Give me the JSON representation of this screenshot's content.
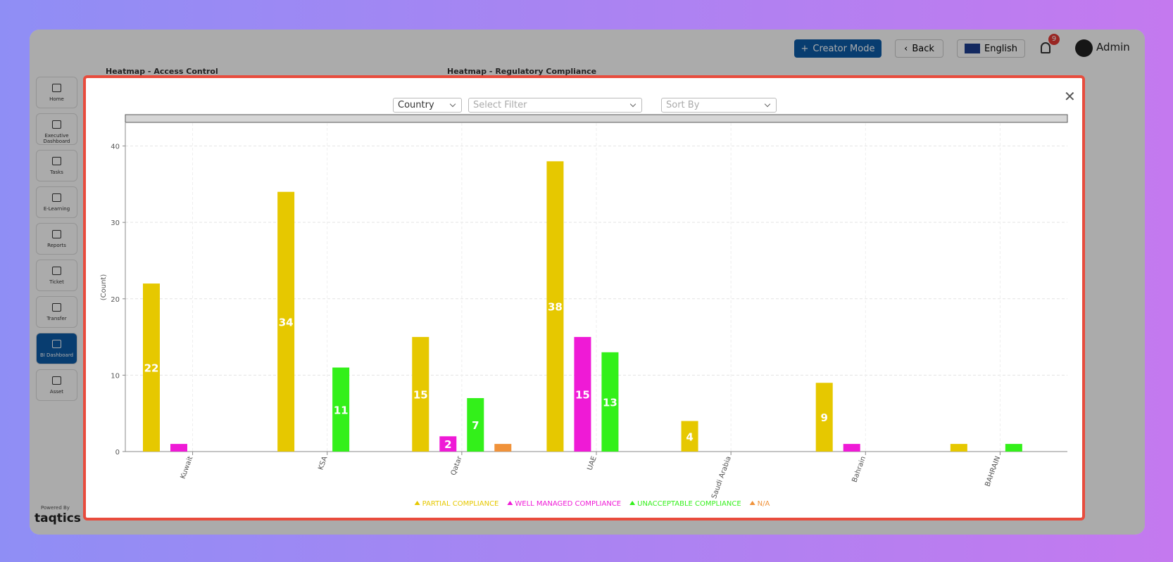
{
  "header": {
    "creator_mode": "Creator Mode",
    "back": "Back",
    "language": "English",
    "notifications": "9",
    "user": "Admin"
  },
  "sidebar": {
    "items": [
      "Home",
      "Executive Dashboard",
      "Tasks",
      "E-Learning",
      "Reports",
      "Ticket",
      "Transfer",
      "BI Dashboard",
      "Asset"
    ],
    "active": 7,
    "powered_by": "Powered By",
    "brand": "taqtics"
  },
  "background_panels": [
    "Heatmap - Access Control",
    "Heatmap - Regulatory Compliance"
  ],
  "modal": {
    "filters": [
      "Country",
      "Select Filter",
      "Sort By"
    ]
  },
  "chart_data": {
    "type": "bar",
    "ylabel": "(Count)",
    "categories": [
      "Kuwait",
      "KSA",
      "Qatar",
      "UAE",
      "Saudi Arabia",
      "Bahrain",
      "BAHRAIN"
    ],
    "series": [
      {
        "name": "PARTIAL COMPLIANCE",
        "color": "#e6c800",
        "values": [
          22,
          34,
          15,
          38,
          4,
          9,
          1
        ]
      },
      {
        "name": "WELL MANAGED COMPLIANCE",
        "color": "#ef1ad6",
        "values": [
          1,
          null,
          2,
          15,
          null,
          1,
          null
        ]
      },
      {
        "name": "UNACCEPTABLE COMPLIANCE",
        "color": "#33f01a",
        "values": [
          null,
          11,
          7,
          13,
          null,
          null,
          1
        ]
      },
      {
        "name": "N/A",
        "color": "#f0923a",
        "values": [
          null,
          null,
          1,
          null,
          null,
          null,
          null
        ]
      }
    ],
    "ylim": [
      0,
      43
    ],
    "yticks": [
      0,
      10,
      20,
      30,
      40
    ],
    "grid": true
  }
}
